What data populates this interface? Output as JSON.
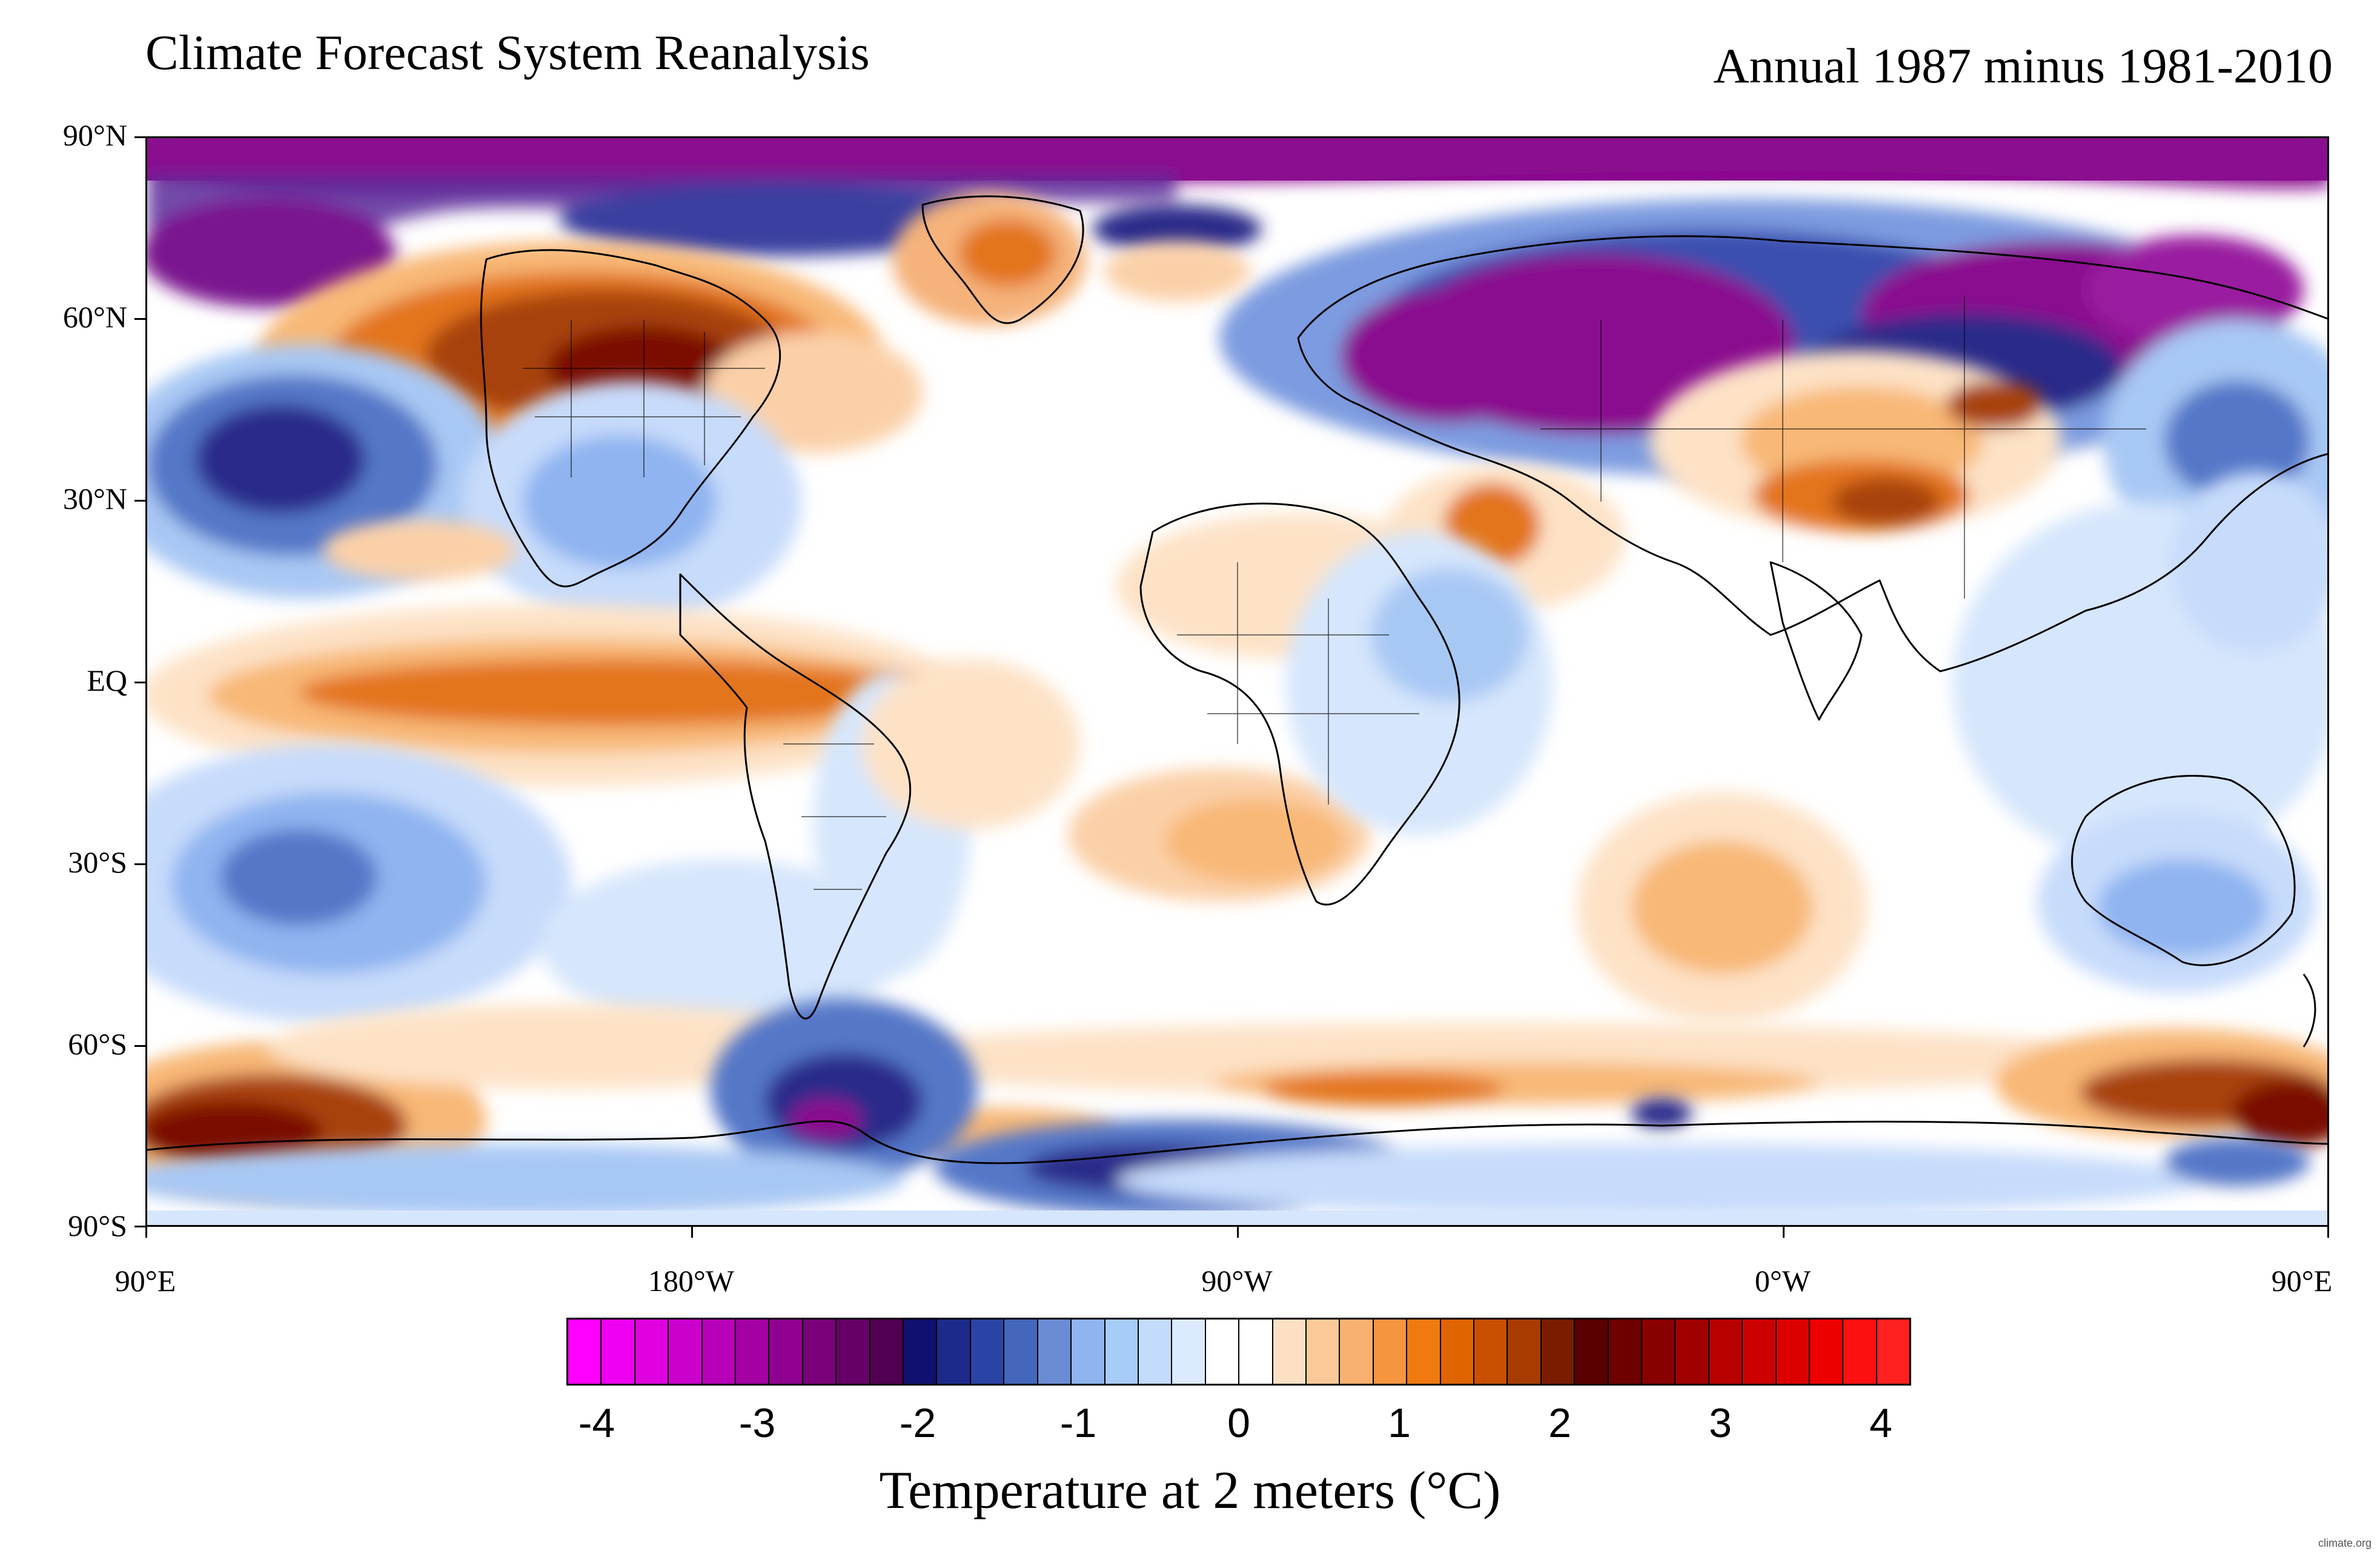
{
  "titles": {
    "left": "Climate Forecast System Reanalysis",
    "right": "Annual 1987 minus 1981-2010"
  },
  "axes": {
    "lat_labels": [
      "90°N",
      "60°N",
      "30°N",
      "EQ",
      "30°S",
      "60°S",
      "90°S"
    ],
    "lon_labels": [
      "90°E",
      "180°W",
      "90°W",
      "0°W",
      "90°E"
    ]
  },
  "colorbar": {
    "title": "Temperature at 2 meters (°C)",
    "tick_labels": [
      "-4",
      "-3",
      "-2",
      "-1",
      "0",
      "1",
      "2",
      "3",
      "4"
    ],
    "colors": [
      "#ff00ff",
      "#f000f0",
      "#e000e0",
      "#cc00cc",
      "#b800b8",
      "#a400a4",
      "#900090",
      "#7a007a",
      "#660066",
      "#520052",
      "#101070",
      "#1c2a8c",
      "#2a44a6",
      "#4466bb",
      "#6a8cd4",
      "#8fb4f0",
      "#a8ccf8",
      "#c4dcfc",
      "#dceaff",
      "#ffffff",
      "#ffffff",
      "#fde0c4",
      "#fbc998",
      "#f8b070",
      "#f59540",
      "#f07a10",
      "#e06400",
      "#c85000",
      "#a83c00",
      "#7a1c00",
      "#5a0000",
      "#6e0000",
      "#880000",
      "#a00000",
      "#b80000",
      "#cc0000",
      "#dd0000",
      "#ee0000",
      "#ff1010",
      "#ff2020"
    ]
  },
  "map": {
    "shaded_field": "2 m temperature anomaly",
    "palette": {
      "deep_cold": "#8a0a8f",
      "very_cold": "#2a2a8a",
      "cold": "#5577c8",
      "cool": "#a8c8f4",
      "slight_cool": "#d6e6fc",
      "neutral": "#ffffff",
      "slight_warm": "#fde2c6",
      "warm": "#f8b877",
      "hot": "#e3741d",
      "very_hot": "#a8420a",
      "extreme_hot": "#7a1000"
    }
  },
  "credit": "climate.org"
}
